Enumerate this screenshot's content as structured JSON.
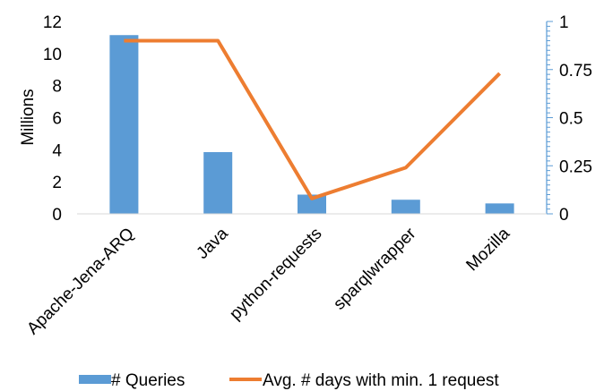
{
  "chart_data": {
    "type": "bar",
    "categories": [
      "Apache-Jena-ARQ",
      "Java",
      "python-requests",
      "sparqlwrapper",
      "Mozilla"
    ],
    "series": [
      {
        "name": "# Queries",
        "type": "bar",
        "axis": "left",
        "values": [
          11.15,
          3.85,
          1.2,
          0.88,
          0.65
        ],
        "color": "#5B9BD5"
      },
      {
        "name": "Avg. # days with min. 1 request",
        "type": "line",
        "axis": "right",
        "values": [
          0.9,
          0.9,
          0.08,
          0.24,
          0.73
        ],
        "color": "#ED7D31"
      }
    ],
    "ylabel": "Millions",
    "ylim": [
      0,
      12
    ],
    "yticks": [
      0,
      2,
      4,
      6,
      8,
      10,
      12
    ],
    "ylim_right": [
      0,
      1
    ],
    "yticks_right": [
      "0",
      "0.25",
      "0.5",
      "0.75",
      "1"
    ],
    "legend": "bottom",
    "grid": false,
    "right_axis_color": "#5B9BD5"
  }
}
